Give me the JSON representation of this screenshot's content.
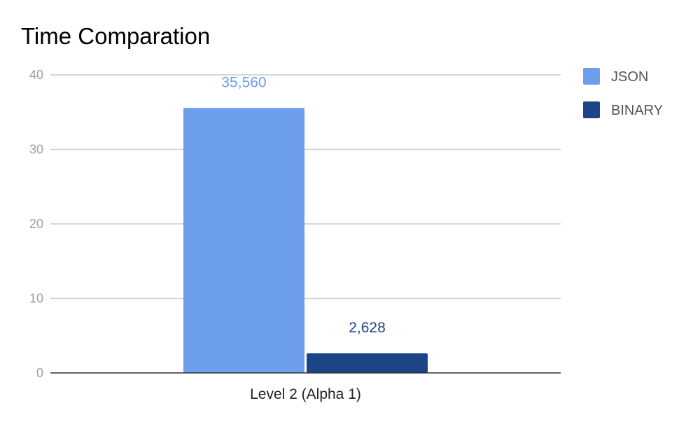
{
  "chart_data": {
    "type": "bar",
    "title": "Time Comparation",
    "categories": [
      "Level 2 (Alpha 1)"
    ],
    "series": [
      {
        "name": "JSON",
        "values": [
          35.56
        ],
        "label": "35,560",
        "color": "#6d9eeb"
      },
      {
        "name": "BINARY",
        "values": [
          2.628
        ],
        "label": "2,628",
        "color": "#1c4587"
      }
    ],
    "yticks": [
      "0",
      "10",
      "20",
      "30",
      "40"
    ],
    "ylim": [
      0,
      40
    ],
    "xlabel": "",
    "ylabel": "",
    "grid": true,
    "legend": "right"
  }
}
